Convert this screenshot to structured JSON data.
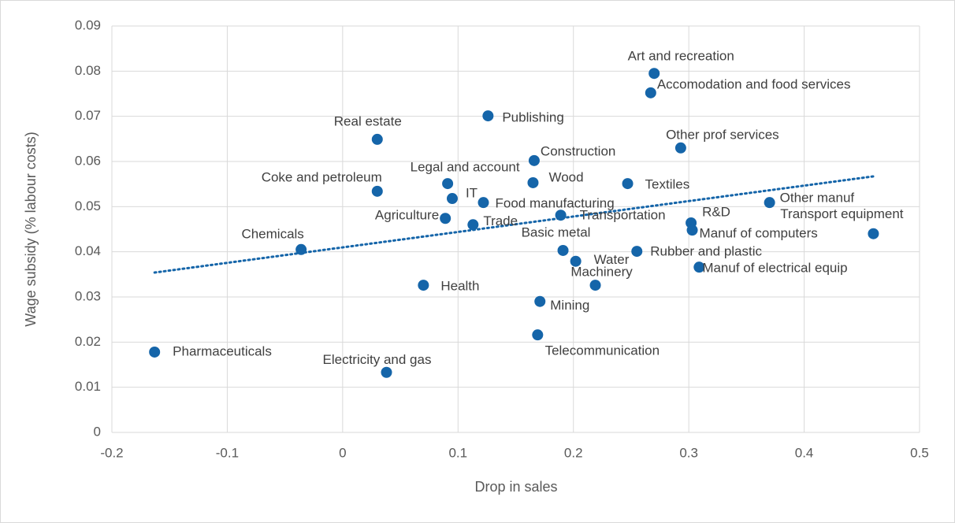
{
  "chart_data": {
    "type": "scatter",
    "xlabel": "Drop in sales",
    "ylabel": "Wage subsidy (% labour costs)",
    "labels": [
      "Art and recreation",
      "Accomodation and food services",
      "Publishing",
      "Real estate",
      "Other prof services",
      "Construction",
      "Coke and petroleum",
      "Legal and account",
      "Wood",
      "Textiles",
      "IT",
      "Food manufacturing",
      "Other manuf",
      "Agriculture",
      "Transportation",
      "R&D",
      "Trade",
      "Manuf of computers",
      "Transport equipment",
      "Chemicals",
      "Basic metal",
      "Rubber and plastic",
      "Water",
      "Manuf of electrical equip",
      "Machinery",
      "Health",
      "Mining",
      "Telecommunication",
      "Pharmaceuticals",
      "Electricity and gas"
    ],
    "x": [
      0.27,
      0.267,
      0.126,
      0.03,
      0.293,
      0.166,
      0.03,
      0.091,
      0.165,
      0.247,
      0.095,
      0.122,
      0.37,
      0.089,
      0.189,
      0.302,
      0.113,
      0.303,
      0.46,
      -0.036,
      0.191,
      0.255,
      0.202,
      0.309,
      0.219,
      0.07,
      0.171,
      0.169,
      -0.163,
      0.038
    ],
    "values": [
      0.0795,
      0.0752,
      0.0701,
      0.0649,
      0.063,
      0.0602,
      0.0534,
      0.0551,
      0.0553,
      0.0551,
      0.0518,
      0.0509,
      0.0509,
      0.0474,
      0.0481,
      0.0464,
      0.046,
      0.0448,
      0.044,
      0.0405,
      0.0403,
      0.0401,
      0.0379,
      0.0366,
      0.0326,
      0.0326,
      0.029,
      0.0216,
      0.0178,
      0.0133
    ],
    "color": "#1565a9",
    "trendline": {
      "x": [
        -0.163,
        0.46
      ],
      "values": [
        0.0354,
        0.0567
      ],
      "color": "#1565a9",
      "style": "dotted"
    },
    "xlim": [
      -0.2,
      0.5
    ],
    "xticks": [
      -0.2,
      -0.1,
      0,
      0.1,
      0.2,
      0.3,
      0.4,
      0.5
    ],
    "ylim": [
      0,
      0.09
    ],
    "yticks": [
      0,
      0.01,
      0.02,
      0.03,
      0.04,
      0.05,
      0.06,
      0.07,
      0.08,
      0.09
    ],
    "grid": true
  }
}
